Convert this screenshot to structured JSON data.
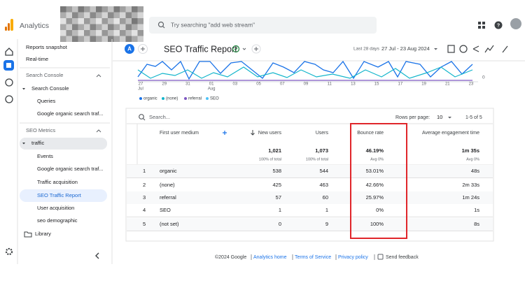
{
  "header": {
    "app_name": "Analytics",
    "search_placeholder": "Try searching \"add web stream\""
  },
  "nav": {
    "items": [
      "Reports snapshot",
      "Real-time",
      "Search Console",
      "Search Console",
      "Queries",
      "Google organic search traf...",
      "SEO Metrics",
      "traffic",
      "Events",
      "Google organic search traf...",
      "Traffic acquisition",
      "SEO Traffic Report",
      "User acquisition",
      "seo demographic",
      "Library"
    ]
  },
  "report": {
    "avatar": "A",
    "title": "SEO Traffic Report",
    "date_prefix": "Last 28 days",
    "date_range": "27 Jul - 23 Aug 2024"
  },
  "chart": {
    "x_labels": [
      "27",
      "29",
      "31",
      "01",
      "03",
      "05",
      "07",
      "09",
      "11",
      "13",
      "15",
      "17",
      "19",
      "21",
      "23"
    ],
    "month_labels": [
      "Jul",
      "Aug"
    ],
    "y_label": "0",
    "legend": [
      "organic",
      "(none)",
      "referral",
      "SEO"
    ]
  },
  "table": {
    "search_placeholder": "Search...",
    "rows_per_page_label": "Rows per page:",
    "rows_per_page": "10",
    "pagination": "1-5 of 5",
    "columns": [
      "First user medium",
      "New users",
      "Users",
      "Bounce rate",
      "Average engagement time"
    ],
    "totals": [
      "1,021",
      "1,073",
      "46.19%",
      "1m 35s"
    ],
    "totals_sub": [
      "100% of total",
      "100% of total",
      "Avg 0%",
      "Avg 0%"
    ],
    "rows": [
      [
        "1",
        "organic",
        "538",
        "544",
        "53.01%",
        "48s"
      ],
      [
        "2",
        "(none)",
        "425",
        "463",
        "42.66%",
        "2m 33s"
      ],
      [
        "3",
        "referral",
        "57",
        "60",
        "25.97%",
        "1m 24s"
      ],
      [
        "4",
        "SEO",
        "1",
        "1",
        "0%",
        "1s"
      ],
      [
        "5",
        "(not set)",
        "0",
        "9",
        "100%",
        "8s"
      ]
    ]
  },
  "footer": {
    "copyright": "©2024 Google",
    "links": [
      "Analytics home",
      "Terms of Service",
      "Privacy policy",
      "Send feedback"
    ]
  }
}
